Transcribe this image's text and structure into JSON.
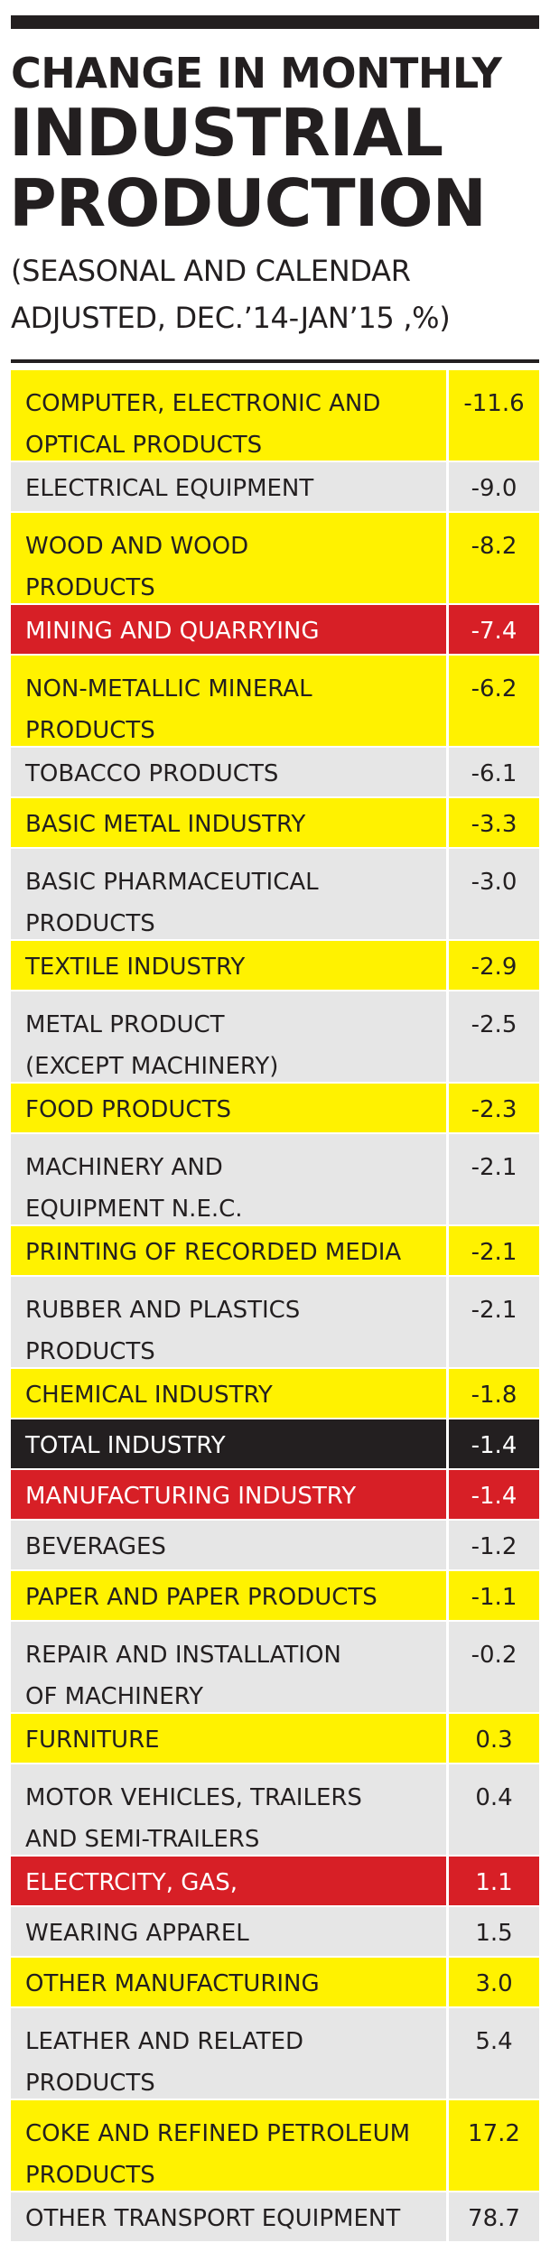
{
  "chart_data": {
    "type": "table",
    "title_line1": "CHANGE IN MONTHLY",
    "title_line2": "INDUSTRIAL",
    "title_line3": "PRODUCTION",
    "subtitle_line1": "(SEASONAL AND CALENDAR",
    "subtitle_line2": "ADJUSTED, DEC.’14-JAN’15 ,%)",
    "colors": {
      "yellow": "#fff200",
      "gray": "#e6e6e6",
      "red": "#d71f26",
      "black": "#231f20"
    },
    "rows": [
      {
        "label": "COMPUTER, ELECTRONIC AND\nOPTICAL PRODUCTS",
        "value": "-11.6",
        "color": "yellow"
      },
      {
        "label": "ELECTRICAL EQUIPMENT",
        "value": "-9.0",
        "color": "gray"
      },
      {
        "label": "WOOD AND WOOD\nPRODUCTS",
        "value": "-8.2",
        "color": "yellow"
      },
      {
        "label": "MINING AND QUARRYING",
        "value": "-7.4",
        "color": "red"
      },
      {
        "label": "NON-METALLIC MINERAL\nPRODUCTS",
        "value": "-6.2",
        "color": "yellow"
      },
      {
        "label": "TOBACCO PRODUCTS",
        "value": "-6.1",
        "color": "gray"
      },
      {
        "label": "BASIC METAL INDUSTRY",
        "value": "-3.3",
        "color": "yellow"
      },
      {
        "label": "BASIC PHARMACEUTICAL\nPRODUCTS",
        "value": "-3.0",
        "color": "gray"
      },
      {
        "label": "TEXTILE INDUSTRY",
        "value": "-2.9",
        "color": "yellow"
      },
      {
        "label": "METAL PRODUCT\n(EXCEPT MACHINERY)",
        "value": "-2.5",
        "color": "gray"
      },
      {
        "label": "FOOD PRODUCTS",
        "value": "-2.3",
        "color": "yellow"
      },
      {
        "label": "MACHINERY AND\nEQUIPMENT N.E.C.",
        "value": "-2.1",
        "color": "gray"
      },
      {
        "label": "PRINTING OF RECORDED MEDIA",
        "value": "-2.1",
        "color": "yellow"
      },
      {
        "label": "RUBBER AND PLASTICS\nPRODUCTS",
        "value": "-2.1",
        "color": "gray"
      },
      {
        "label": "CHEMICAL INDUSTRY",
        "value": "-1.8",
        "color": "yellow"
      },
      {
        "label": "TOTAL INDUSTRY",
        "value": "-1.4",
        "color": "black"
      },
      {
        "label": "MANUFACTURING INDUSTRY",
        "value": "-1.4",
        "color": "red"
      },
      {
        "label": "BEVERAGES",
        "value": "-1.2",
        "color": "gray"
      },
      {
        "label": "PAPER AND PAPER PRODUCTS",
        "value": "-1.1",
        "color": "yellow"
      },
      {
        "label": "REPAIR AND INSTALLATION\nOF  MACHINERY",
        "value": "-0.2",
        "color": "gray"
      },
      {
        "label": "FURNITURE",
        "value": "0.3",
        "color": "yellow"
      },
      {
        "label": "MOTOR VEHICLES, TRAILERS\nAND SEMI-TRAILERS",
        "value": "0.4",
        "color": "gray"
      },
      {
        "label": "ELECTRCITY, GAS,",
        "value": "1.1",
        "color": "red"
      },
      {
        "label": "WEARING APPAREL",
        "value": "1.5",
        "color": "gray"
      },
      {
        "label": "OTHER MANUFACTURING",
        "value": "3.0",
        "color": "yellow"
      },
      {
        "label": "LEATHER AND RELATED\nPRODUCTS",
        "value": "5.4",
        "color": "gray"
      },
      {
        "label": "COKE AND REFINED PETROLEUM\nPRODUCTS",
        "value": "17.2",
        "color": "yellow"
      },
      {
        "label": "OTHER TRANSPORT EQUIPMENT",
        "value": "78.7",
        "color": "gray"
      }
    ]
  }
}
